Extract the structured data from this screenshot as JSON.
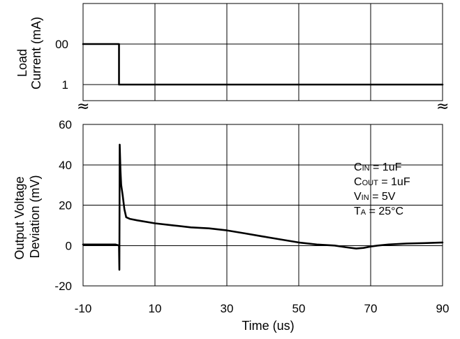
{
  "chart_data": [
    {
      "type": "line",
      "panel": "top",
      "ylabel_lines": [
        "Load",
        "Current (mA)"
      ],
      "y_tick_labels": [
        "00",
        "1"
      ],
      "xlim": [
        -10,
        90
      ],
      "grid": true,
      "series": [
        {
          "x": [
            -10,
            0,
            0,
            90
          ],
          "y": [
            1,
            1,
            0,
            0
          ],
          "y_meaning": "1 = upper level (tick 00), 0 = lower level (tick 1)"
        }
      ]
    },
    {
      "type": "line",
      "panel": "bottom",
      "ylabel_lines": [
        "Output Voltage",
        "Deviation (mV)"
      ],
      "xlabel": "Time (us)",
      "xlim": [
        -10,
        90
      ],
      "ylim": [
        -20,
        60
      ],
      "x_ticks": [
        -10,
        10,
        30,
        50,
        70,
        90
      ],
      "x_tick_labels": [
        "-10",
        "10",
        "30",
        "50",
        "70",
        "90"
      ],
      "y_ticks": [
        -20,
        0,
        20,
        40,
        60
      ],
      "y_tick_labels": [
        "-20",
        "0",
        "20",
        "40",
        "60"
      ],
      "grid": true,
      "series": [
        {
          "x": [
            -10,
            -5,
            -1,
            0,
            0.1,
            0.2,
            0.4,
            0.6,
            1,
            1.5,
            2,
            3,
            5,
            10,
            15,
            20,
            25,
            30,
            35,
            40,
            45,
            50,
            55,
            60,
            63,
            66,
            68,
            70,
            72,
            75,
            80,
            85,
            90
          ],
          "y": [
            0.5,
            0.5,
            0.5,
            0,
            -12,
            50,
            37,
            30,
            25,
            18,
            14,
            13.2,
            12.5,
            11,
            10,
            9,
            8.5,
            7.5,
            6,
            4.5,
            3,
            1.5,
            0.5,
            0,
            -0.8,
            -1.5,
            -1.2,
            -0.5,
            0,
            0.5,
            1,
            1.2,
            1.5
          ]
        }
      ],
      "annotations": [
        {
          "main": "C",
          "sub": "IN",
          "rest": " = 1uF"
        },
        {
          "main": "C",
          "sub": "OUT",
          "rest": " = 1uF"
        },
        {
          "main": "V",
          "sub": "IN",
          "rest": " = 5V"
        },
        {
          "main": "T",
          "sub": "A",
          "rest": " = 25°C"
        }
      ]
    }
  ],
  "axis_break_symbol": "≈"
}
